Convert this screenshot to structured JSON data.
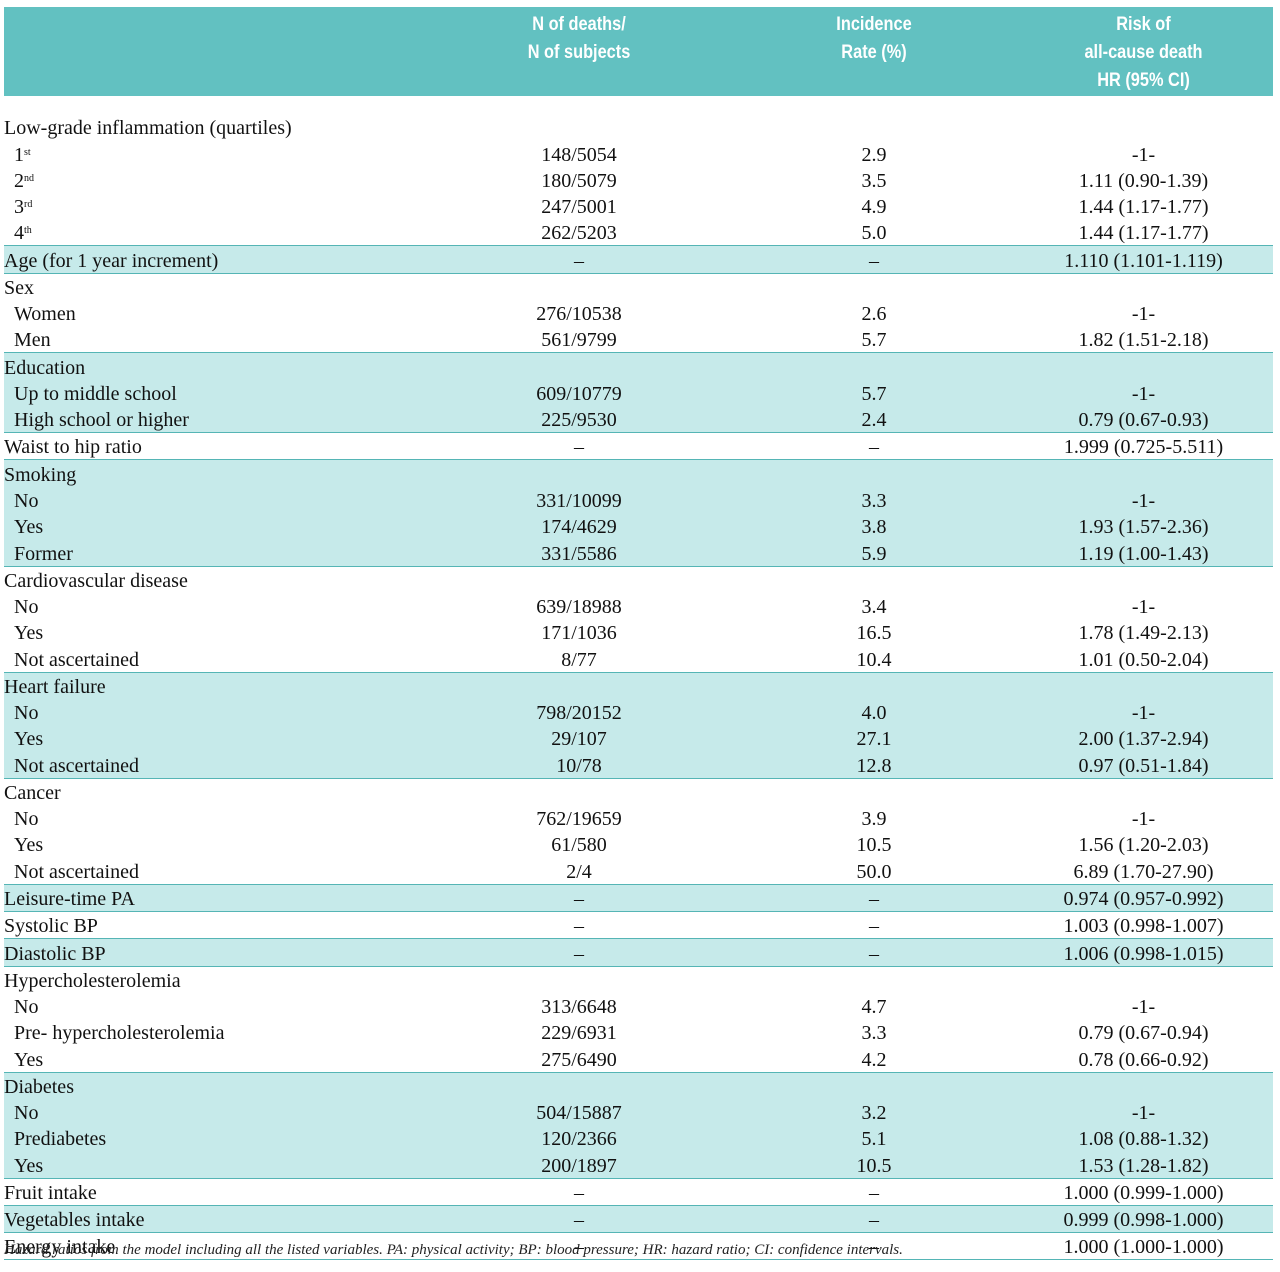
{
  "header": {
    "col0": "",
    "col1_line1": "N of deaths/",
    "col1_line2": "N of subjects",
    "col2_line1": "Incidence",
    "col2_line2": "Rate (%)",
    "col3_line1": "Risk of",
    "col3_line2": "all-cause death",
    "col3_line3": "HR (95% CI)"
  },
  "rows": [
    {
      "label": "Low-grade inflammation (quartiles)",
      "n": "",
      "rate": "",
      "hr": ""
    },
    {
      "label": "1",
      "sup": "st",
      "n": "148/5054",
      "rate": "2.9",
      "hr": "-1-"
    },
    {
      "label": "2",
      "sup": "nd",
      "n": "180/5079",
      "rate": "3.5",
      "hr": "1.11 (0.90-1.39)"
    },
    {
      "label": "3",
      "sup": "rd",
      "n": "247/5001",
      "rate": "4.9",
      "hr": "1.44 (1.17-1.77)"
    },
    {
      "label": "4",
      "sup": "th",
      "n": "262/5203",
      "rate": "5.0",
      "hr": "1.44 (1.17-1.77)"
    },
    {
      "label": "Age (for 1 year increment)",
      "n": "–",
      "rate": "–",
      "hr": "1.110 (1.101-1.119)"
    },
    {
      "label": "Sex",
      "n": "",
      "rate": "",
      "hr": ""
    },
    {
      "label": "Women",
      "n": "276/10538",
      "rate": "2.6",
      "hr": "-1-"
    },
    {
      "label": "Men",
      "n": "561/9799",
      "rate": "5.7",
      "hr": "1.82 (1.51-2.18)"
    },
    {
      "label": "Education",
      "n": "",
      "rate": "",
      "hr": ""
    },
    {
      "label": "Up to middle school",
      "n": "609/10779",
      "rate": "5.7",
      "hr": "-1-"
    },
    {
      "label": "High school or higher",
      "n": "225/9530",
      "rate": "2.4",
      "hr": "0.79 (0.67-0.93)"
    },
    {
      "label": "Waist to hip ratio",
      "n": "–",
      "rate": "–",
      "hr": "1.999 (0.725-5.511)"
    },
    {
      "label": "Smoking",
      "n": "",
      "rate": "",
      "hr": ""
    },
    {
      "label": "No",
      "n": "331/10099",
      "rate": "3.3",
      "hr": "-1-"
    },
    {
      "label": "Yes",
      "n": "174/4629",
      "rate": "3.8",
      "hr": "1.93 (1.57-2.36)"
    },
    {
      "label": "Former",
      "n": "331/5586",
      "rate": "5.9",
      "hr": "1.19 (1.00-1.43)"
    },
    {
      "label": "Cardiovascular disease",
      "n": "",
      "rate": "",
      "hr": ""
    },
    {
      "label": "No",
      "n": "639/18988",
      "rate": "3.4",
      "hr": "-1-"
    },
    {
      "label": "Yes",
      "n": "171/1036",
      "rate": "16.5",
      "hr": "1.78 (1.49-2.13)"
    },
    {
      "label": "Not ascertained",
      "n": "8/77",
      "rate": "10.4",
      "hr": "1.01 (0.50-2.04)"
    },
    {
      "label": "Heart failure",
      "n": "",
      "rate": "",
      "hr": ""
    },
    {
      "label": "No",
      "n": "798/20152",
      "rate": "4.0",
      "hr": "-1-"
    },
    {
      "label": "Yes",
      "n": "29/107",
      "rate": "27.1",
      "hr": "2.00 (1.37-2.94)"
    },
    {
      "label": "Not ascertained",
      "n": "10/78",
      "rate": "12.8",
      "hr": "0.97 (0.51-1.84)"
    },
    {
      "label": "Cancer",
      "n": "",
      "rate": "",
      "hr": ""
    },
    {
      "label": "No",
      "n": "762/19659",
      "rate": "3.9",
      "hr": "-1-"
    },
    {
      "label": "Yes",
      "n": "61/580",
      "rate": "10.5",
      "hr": "1.56 (1.20-2.03)"
    },
    {
      "label": "Not ascertained",
      "n": "2/4",
      "rate": "50.0",
      "hr": "6.89 (1.70-27.90)"
    },
    {
      "label": "Leisure-time PA",
      "n": "–",
      "rate": "–",
      "hr": "0.974 (0.957-0.992)"
    },
    {
      "label": "Systolic BP",
      "n": "–",
      "rate": "–",
      "hr": "1.003 (0.998-1.007)"
    },
    {
      "label": "Diastolic BP",
      "n": "–",
      "rate": "–",
      "hr": "1.006 (0.998-1.015)"
    },
    {
      "label": "Hypercholesterolemia",
      "n": "",
      "rate": "",
      "hr": ""
    },
    {
      "label": "No",
      "n": "313/6648",
      "rate": "4.7",
      "hr": "-1-"
    },
    {
      "label": "Pre- hypercholesterolemia",
      "n": "229/6931",
      "rate": "3.3",
      "hr": "0.79 (0.67-0.94)"
    },
    {
      "label": "Yes",
      "n": "275/6490",
      "rate": "4.2",
      "hr": "0.78 (0.66-0.92)"
    },
    {
      "label": "Diabetes",
      "n": "",
      "rate": "",
      "hr": ""
    },
    {
      "label": "No",
      "n": "504/15887",
      "rate": "3.2",
      "hr": "-1-"
    },
    {
      "label": "Prediabetes",
      "n": "120/2366",
      "rate": "5.1",
      "hr": "1.08 (0.88-1.32)"
    },
    {
      "label": "Yes",
      "n": "200/1897",
      "rate": "10.5",
      "hr": "1.53 (1.28-1.82)"
    },
    {
      "label": "Fruit intake",
      "n": "–",
      "rate": "–",
      "hr": "1.000 (0.999-1.000)"
    },
    {
      "label": "Vegetables intake",
      "n": "–",
      "rate": "–",
      "hr": "0.999 (0.998-1.000)"
    },
    {
      "label": "Energy intake",
      "n": "–",
      "rate": "–",
      "hr": "1.000 (1.000-1.000)"
    }
  ],
  "footnote": "Hazard ratios from the model including all the listed variables. PA: physical activity; BP: blood pressure; HR: hazard ratio; CI: confidence intervals."
}
